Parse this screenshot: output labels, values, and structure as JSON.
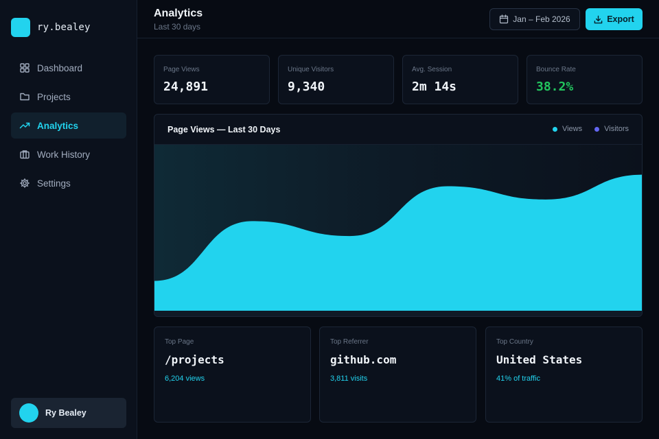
{
  "brand": {
    "name": "ry.bealey"
  },
  "sidebar": {
    "items": [
      {
        "label": "Dashboard",
        "icon": "grid-icon",
        "active": false
      },
      {
        "label": "Projects",
        "icon": "folder-icon",
        "active": false
      },
      {
        "label": "Analytics",
        "icon": "trending-up-icon",
        "active": true
      },
      {
        "label": "Work History",
        "icon": "briefcase-icon",
        "active": false
      },
      {
        "label": "Settings",
        "icon": "gear-icon",
        "active": false
      }
    ],
    "user": {
      "name": "Ry Bealey"
    }
  },
  "header": {
    "title": "Analytics",
    "subtitle": "Last 30 days",
    "date_range": "Jan – Feb 2026",
    "export_label": "Export"
  },
  "stats": [
    {
      "label": "Page Views",
      "value": "24,891"
    },
    {
      "label": "Unique Visitors",
      "value": "9,340"
    },
    {
      "label": "Avg. Session",
      "value": "2m 14s"
    },
    {
      "label": "Bounce Rate",
      "value": "38.2%"
    }
  ],
  "chart": {
    "title": "Page Views — Last 30 Days",
    "legend": [
      {
        "name": "Views",
        "color": "#22d3ee"
      },
      {
        "name": "Visitors",
        "color": "#6366f1"
      }
    ]
  },
  "chart_data": {
    "type": "area",
    "title": "Page Views — Last 30 Days",
    "series": [
      {
        "name": "Views",
        "values": [
          0.18,
          0.54,
          0.45,
          0.75,
          0.67,
          0.82
        ]
      }
    ],
    "y_normalized": true,
    "grid": false,
    "legend_position": "top-right",
    "colors": {
      "views": "#22d3ee",
      "visitors": "#6366f1"
    }
  },
  "top": [
    {
      "label": "Top Page",
      "value": "/projects",
      "meta": "6,204 views"
    },
    {
      "label": "Top Referrer",
      "value": "github.com",
      "meta": "3,811 visits"
    },
    {
      "label": "Top Country",
      "value": "United States",
      "meta": "41% of traffic"
    }
  ],
  "colors": {
    "accent": "#22d3ee",
    "positive": "#22c55e",
    "background": "#070b13",
    "card": "#0b111c"
  }
}
